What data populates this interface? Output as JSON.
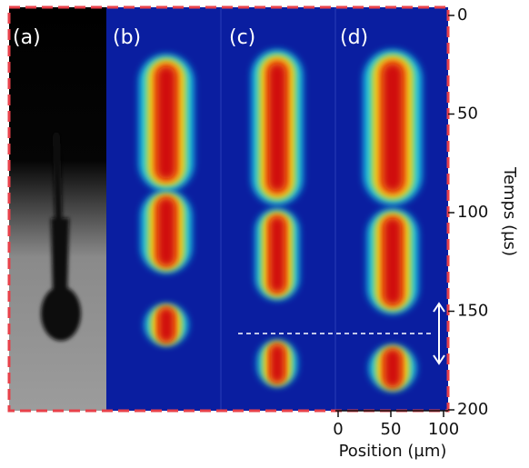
{
  "figure": {
    "panels": [
      {
        "label": "(a)"
      },
      {
        "label": "(b)"
      },
      {
        "label": "(c)"
      },
      {
        "label": "(d)"
      }
    ],
    "y_axis": {
      "label": "Temps (µs)",
      "lim": [
        0,
        200
      ],
      "ticks": [
        0,
        50,
        100,
        150,
        200
      ]
    },
    "x_axis": {
      "label": "Position (µm)",
      "lim": [
        0,
        100
      ],
      "ticks": [
        0,
        50,
        100
      ]
    }
  }
}
